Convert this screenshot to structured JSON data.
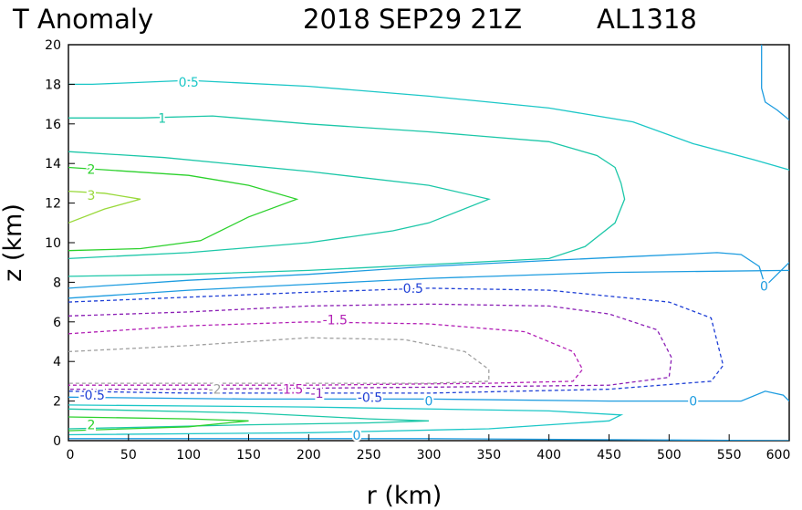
{
  "header": {
    "title": "T Anomaly",
    "date": "2018 SEP29 21Z",
    "storm": "AL1318"
  },
  "chart_data": {
    "type": "contour",
    "title": "T Anomaly",
    "xlabel": "r (km)",
    "ylabel": "z (km)",
    "xlim": [
      0,
      600
    ],
    "ylim": [
      0,
      20
    ],
    "x_ticks": [
      0,
      50,
      100,
      150,
      200,
      250,
      300,
      350,
      400,
      450,
      500,
      550,
      600
    ],
    "y_ticks": [
      0,
      2,
      4,
      6,
      8,
      10,
      12,
      14,
      16,
      18,
      20
    ],
    "contours": [
      {
        "level": 0.5,
        "color": "#1cc7c7",
        "dashed": false,
        "points": [
          [
            0,
            18.0
          ],
          [
            20,
            18.0
          ],
          [
            100,
            18.2
          ],
          [
            200,
            17.9
          ],
          [
            300,
            17.4
          ],
          [
            400,
            16.8
          ],
          [
            470,
            16.1
          ],
          [
            520,
            15.0
          ],
          [
            570,
            14.2
          ],
          [
            610,
            13.5
          ]
        ]
      },
      {
        "level": 1,
        "color": "#1cc7a8",
        "dashed": false,
        "points": [
          [
            0,
            16.3
          ],
          [
            60,
            16.3
          ],
          [
            120,
            16.4
          ],
          [
            200,
            16.0
          ],
          [
            300,
            15.6
          ],
          [
            400,
            15.1
          ],
          [
            440,
            14.4
          ],
          [
            455,
            13.8
          ],
          [
            460,
            13.0
          ],
          [
            463,
            12.2
          ],
          [
            455,
            11.0
          ],
          [
            430,
            9.8
          ],
          [
            400,
            9.2
          ],
          [
            300,
            8.9
          ],
          [
            200,
            8.6
          ],
          [
            100,
            8.4
          ],
          [
            0,
            8.3
          ]
        ]
      },
      {
        "level": 1.5,
        "color": "#1cc7a8",
        "dashed": false,
        "points": [
          [
            0,
            14.6
          ],
          [
            80,
            14.3
          ],
          [
            200,
            13.6
          ],
          [
            300,
            12.9
          ],
          [
            350,
            12.2
          ],
          [
            300,
            11.0
          ],
          [
            270,
            10.6
          ],
          [
            200,
            10.0
          ],
          [
            100,
            9.5
          ],
          [
            0,
            9.2
          ]
        ]
      },
      {
        "level": 2,
        "color": "#2cd12c",
        "dashed": false,
        "points": [
          [
            0,
            13.8
          ],
          [
            100,
            13.4
          ],
          [
            150,
            12.9
          ],
          [
            190,
            12.2
          ],
          [
            150,
            11.3
          ],
          [
            110,
            10.1
          ],
          [
            60,
            9.7
          ],
          [
            0,
            9.6
          ]
        ]
      },
      {
        "level": 3,
        "color": "#99d93a",
        "dashed": false,
        "points": [
          [
            0,
            12.6
          ],
          [
            30,
            12.5
          ],
          [
            60,
            12.2
          ],
          [
            30,
            11.7
          ],
          [
            0,
            11.0
          ]
        ]
      },
      {
        "level": 0,
        "color": "#1d9ce0",
        "dashed": false,
        "points": [
          [
            0,
            7.7
          ],
          [
            100,
            8.1
          ],
          [
            200,
            8.4
          ],
          [
            300,
            8.8
          ],
          [
            400,
            9.1
          ],
          [
            470,
            9.3
          ],
          [
            540,
            9.5
          ],
          [
            560,
            9.4
          ],
          [
            575,
            8.8
          ],
          [
            580,
            7.8
          ],
          [
            590,
            8.4
          ],
          [
            600,
            9.0
          ]
        ]
      },
      {
        "level": 0,
        "color": "#1d9ce0",
        "dashed": false,
        "points": [
          [
            0,
            7.2
          ],
          [
            100,
            7.6
          ],
          [
            200,
            7.9
          ],
          [
            300,
            8.2
          ],
          [
            450,
            8.5
          ],
          [
            600,
            8.6
          ]
        ]
      },
      {
        "level": 0,
        "color": "#1d9ce0",
        "dashed": false,
        "points": [
          [
            577,
            20.0
          ],
          [
            577,
            17.8
          ],
          [
            580,
            17.1
          ],
          [
            590,
            16.7
          ],
          [
            600,
            16.2
          ]
        ]
      },
      {
        "level": 0,
        "color": "#1d9ce0",
        "dashed": false,
        "points": [
          [
            0,
            2.2
          ],
          [
            150,
            2.1
          ],
          [
            300,
            2.1
          ],
          [
            450,
            2.0
          ],
          [
            520,
            2.0
          ],
          [
            560,
            2.0
          ],
          [
            580,
            2.5
          ],
          [
            595,
            2.3
          ],
          [
            600,
            2.0
          ]
        ]
      },
      {
        "level": -0.5,
        "color": "#1e3fd6",
        "dashed": true,
        "points": [
          [
            0,
            7.0
          ],
          [
            200,
            7.5
          ],
          [
            300,
            7.7
          ],
          [
            400,
            7.6
          ],
          [
            500,
            7.0
          ],
          [
            535,
            6.2
          ],
          [
            545,
            3.8
          ],
          [
            535,
            3.0
          ],
          [
            450,
            2.6
          ],
          [
            300,
            2.4
          ],
          [
            100,
            2.4
          ],
          [
            0,
            2.5
          ]
        ]
      },
      {
        "level": -1,
        "color": "#8b1fb5",
        "dashed": true,
        "points": [
          [
            0,
            6.3
          ],
          [
            100,
            6.5
          ],
          [
            200,
            6.8
          ],
          [
            300,
            6.9
          ],
          [
            400,
            6.8
          ],
          [
            450,
            6.4
          ],
          [
            490,
            5.6
          ],
          [
            502,
            4.2
          ],
          [
            500,
            3.2
          ],
          [
            450,
            2.8
          ],
          [
            300,
            2.7
          ],
          [
            100,
            2.6
          ],
          [
            0,
            2.6
          ]
        ]
      },
      {
        "level": -1.5,
        "color": "#b21fb5",
        "dashed": true,
        "points": [
          [
            0,
            5.4
          ],
          [
            100,
            5.8
          ],
          [
            200,
            6.0
          ],
          [
            300,
            5.9
          ],
          [
            380,
            5.5
          ],
          [
            420,
            4.5
          ],
          [
            428,
            3.6
          ],
          [
            420,
            3.0
          ],
          [
            350,
            2.9
          ],
          [
            200,
            2.8
          ],
          [
            0,
            2.8
          ]
        ]
      },
      {
        "level": -2,
        "color": "#a0a0a0",
        "dashed": true,
        "points": [
          [
            0,
            4.5
          ],
          [
            100,
            4.8
          ],
          [
            200,
            5.2
          ],
          [
            280,
            5.1
          ],
          [
            330,
            4.5
          ],
          [
            350,
            3.6
          ],
          [
            350,
            3.0
          ],
          [
            300,
            2.9
          ],
          [
            200,
            2.9
          ],
          [
            0,
            2.9
          ]
        ]
      },
      {
        "level": 0.5,
        "color": "#1cc7c7",
        "dashed": false,
        "points": [
          [
            0,
            1.8
          ],
          [
            200,
            1.7
          ],
          [
            400,
            1.5
          ],
          [
            460,
            1.3
          ],
          [
            450,
            1.0
          ],
          [
            350,
            0.6
          ],
          [
            200,
            0.4
          ],
          [
            0,
            0.3
          ]
        ]
      },
      {
        "level": 1,
        "color": "#1cc7a8",
        "dashed": false,
        "points": [
          [
            0,
            1.6
          ],
          [
            150,
            1.4
          ],
          [
            250,
            1.1
          ],
          [
            300,
            1.0
          ],
          [
            250,
            0.9
          ],
          [
            150,
            0.8
          ],
          [
            0,
            0.6
          ]
        ]
      },
      {
        "level": 2,
        "color": "#2cd12c",
        "dashed": false,
        "points": [
          [
            0,
            1.2
          ],
          [
            100,
            1.1
          ],
          [
            150,
            1.0
          ],
          [
            100,
            0.7
          ],
          [
            0,
            0.5
          ]
        ]
      },
      {
        "level": 0,
        "color": "#1d9ce0",
        "dashed": false,
        "points": [
          [
            0,
            0.1
          ],
          [
            300,
            0.1
          ],
          [
            600,
            0.0
          ]
        ]
      }
    ],
    "labels": [
      {
        "text": "0.5",
        "x": 100,
        "y": 18.1,
        "color": "#1cc7c7"
      },
      {
        "text": "1",
        "x": 78,
        "y": 16.3,
        "color": "#1cc7a8"
      },
      {
        "text": "2",
        "x": 19,
        "y": 13.7,
        "color": "#2cd12c"
      },
      {
        "text": "3",
        "x": 19,
        "y": 12.4,
        "color": "#99d93a"
      },
      {
        "text": "0",
        "x": 579,
        "y": 7.8,
        "color": "#1d9ce0"
      },
      {
        "text": "-0.5",
        "x": 285,
        "y": 7.7,
        "color": "#1e3fd6"
      },
      {
        "text": "-1.5",
        "x": 222,
        "y": 6.1,
        "color": "#b21fb5"
      },
      {
        "text": "-2",
        "x": 122,
        "y": 2.6,
        "color": "#a0a0a0"
      },
      {
        "text": "-1.5",
        "x": 185,
        "y": 2.6,
        "color": "#b21fb5"
      },
      {
        "text": "-1",
        "x": 207,
        "y": 2.4,
        "color": "#8b1fb5"
      },
      {
        "text": "-0.5",
        "x": 251,
        "y": 2.2,
        "color": "#1e3fd6"
      },
      {
        "text": "-0.5",
        "x": 20,
        "y": 2.3,
        "color": "#1e3fd6"
      },
      {
        "text": "0",
        "x": 300,
        "y": 2.0,
        "color": "#1d9ce0"
      },
      {
        "text": "0",
        "x": 520,
        "y": 2.0,
        "color": "#1d9ce0"
      },
      {
        "text": "2",
        "x": 19,
        "y": 0.8,
        "color": "#2cd12c"
      },
      {
        "text": "0",
        "x": 240,
        "y": 0.1,
        "color": "#1d9ce0"
      }
    ]
  }
}
